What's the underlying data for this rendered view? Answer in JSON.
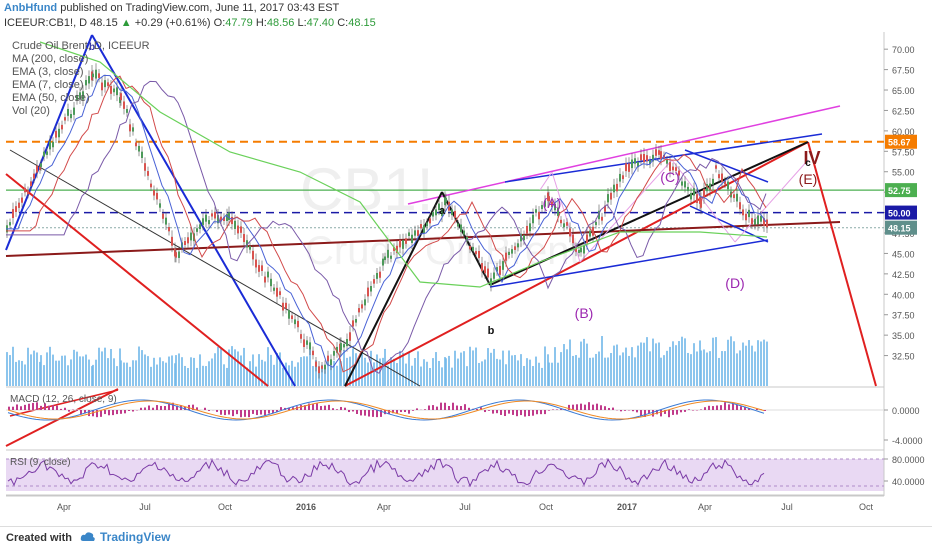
{
  "header": {
    "author": "AnbHfund",
    "published": "published on TradingView.com, June 11, 2017 03:43 EST",
    "symbol_line_prefix": "ICEEUR:CB1!, D  48.15",
    "change": "+0.29 (+0.61%)",
    "o_label": "O:",
    "o": "47.79",
    "h_label": "H:",
    "h": "48.56",
    "l_label": "L:",
    "l": "47.40",
    "c_label": "C:",
    "c": "48.15"
  },
  "legend": {
    "items": [
      "Crude Oil Brent, D, ICEEUR",
      "MA (200, close)",
      "EMA (3, close)",
      "EMA (7, close)",
      "EMA (50, close)",
      "Vol (20)"
    ]
  },
  "watermark": {
    "line1": "CB1!",
    "line2": "Crude Oil Brent"
  },
  "macd_label": "MACD (12, 26, close, 9)",
  "rsi_label": "RSI (9, close)",
  "footer": {
    "created": "Created with",
    "brand": "TradingView"
  },
  "chart_data": {
    "type": "line",
    "symbol": "ICEEUR:CB1!",
    "interval": "D",
    "price_axis": {
      "ylim": [
        30.0,
        71.0
      ],
      "ticks": [
        "70.00",
        "67.50",
        "65.00",
        "62.50",
        "60.00",
        "57.50",
        "55.00",
        "52.50",
        "50.00",
        "47.50",
        "45.00",
        "42.50",
        "40.00",
        "37.50",
        "35.00",
        "32.50"
      ]
    },
    "time_axis": {
      "labels": [
        "Apr",
        "Jul",
        "Oct",
        "2016",
        "Apr",
        "Jul",
        "Oct",
        "2017",
        "Apr",
        "Jul",
        "Oct"
      ]
    },
    "price_series": {
      "name": "Crude Oil Brent",
      "x": [
        "Jan 2015",
        "Mar 2015",
        "May 2015",
        "Jun 2015",
        "Aug 2015",
        "Sep 2015",
        "Oct 2015",
        "Nov 2015",
        "Dec 2015",
        "Jan 2016",
        "Feb 2016",
        "Apr 2016",
        "Jun 2016",
        "Aug 2016",
        "Sep 2016",
        "Oct 2016",
        "Nov 2016",
        "Jan 2017",
        "Feb 2017",
        "Mar 2017",
        "Apr 2017",
        "May 2017",
        "Jun 2017"
      ],
      "values": [
        48,
        56,
        67,
        64,
        45,
        49,
        50,
        44,
        38,
        31,
        33,
        44,
        51,
        42,
        47,
        52,
        45,
        56,
        57,
        51,
        55,
        50,
        48.15
      ]
    },
    "price_labels": [
      {
        "value": "58.67",
        "color": "#f57c00"
      },
      {
        "value": "52.75",
        "color": "#4caf50"
      },
      {
        "value": "50.00",
        "color": "#1a1aa6"
      },
      {
        "value": "48.15",
        "color": "#5f8f8b"
      }
    ],
    "wave_labels": [
      "a",
      "b",
      "(A)",
      "(B)",
      "(C)",
      "(D)",
      "(E)",
      "IV",
      "c",
      "b"
    ],
    "macd": {
      "ticks": [
        "0.0000",
        "-4.0000"
      ]
    },
    "rsi": {
      "ticks": [
        "80.0000",
        "40.0000"
      ]
    },
    "colors": {
      "orange": "#f57c00",
      "blue_dash": "#1a1aa6",
      "green_line": "#4caf50",
      "red_trend": "#e02020",
      "dark_red": "#8b1a1a",
      "magenta": "#e040e0",
      "purple": "#9c27b0",
      "volume": "#6fb6e8",
      "rsi_band": "#e9d9f3"
    }
  }
}
